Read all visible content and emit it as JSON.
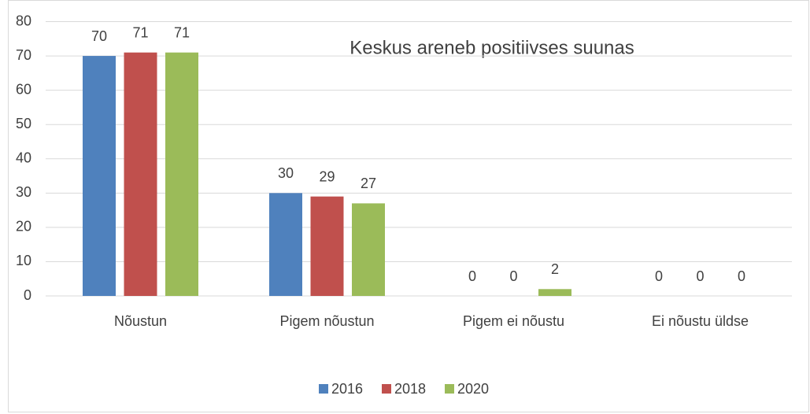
{
  "chart_data": {
    "type": "bar",
    "title": "Keskus areneb positiivses suunas",
    "categories": [
      "Nõustun",
      "Pigem nõustun",
      "Pigem ei nõustu",
      "Ei nõustu üldse"
    ],
    "series": [
      {
        "name": "2016",
        "color": "#4f81bd",
        "values": [
          70,
          30,
          0,
          0
        ]
      },
      {
        "name": "2018",
        "color": "#c0504d",
        "values": [
          71,
          29,
          0,
          0
        ]
      },
      {
        "name": "2020",
        "color": "#9bbb59",
        "values": [
          71,
          27,
          2,
          0
        ]
      }
    ],
    "ylim": [
      0,
      80
    ],
    "yticks": [
      0,
      10,
      20,
      30,
      40,
      50,
      60,
      70,
      80
    ],
    "grid": true,
    "legend": "bottom"
  }
}
